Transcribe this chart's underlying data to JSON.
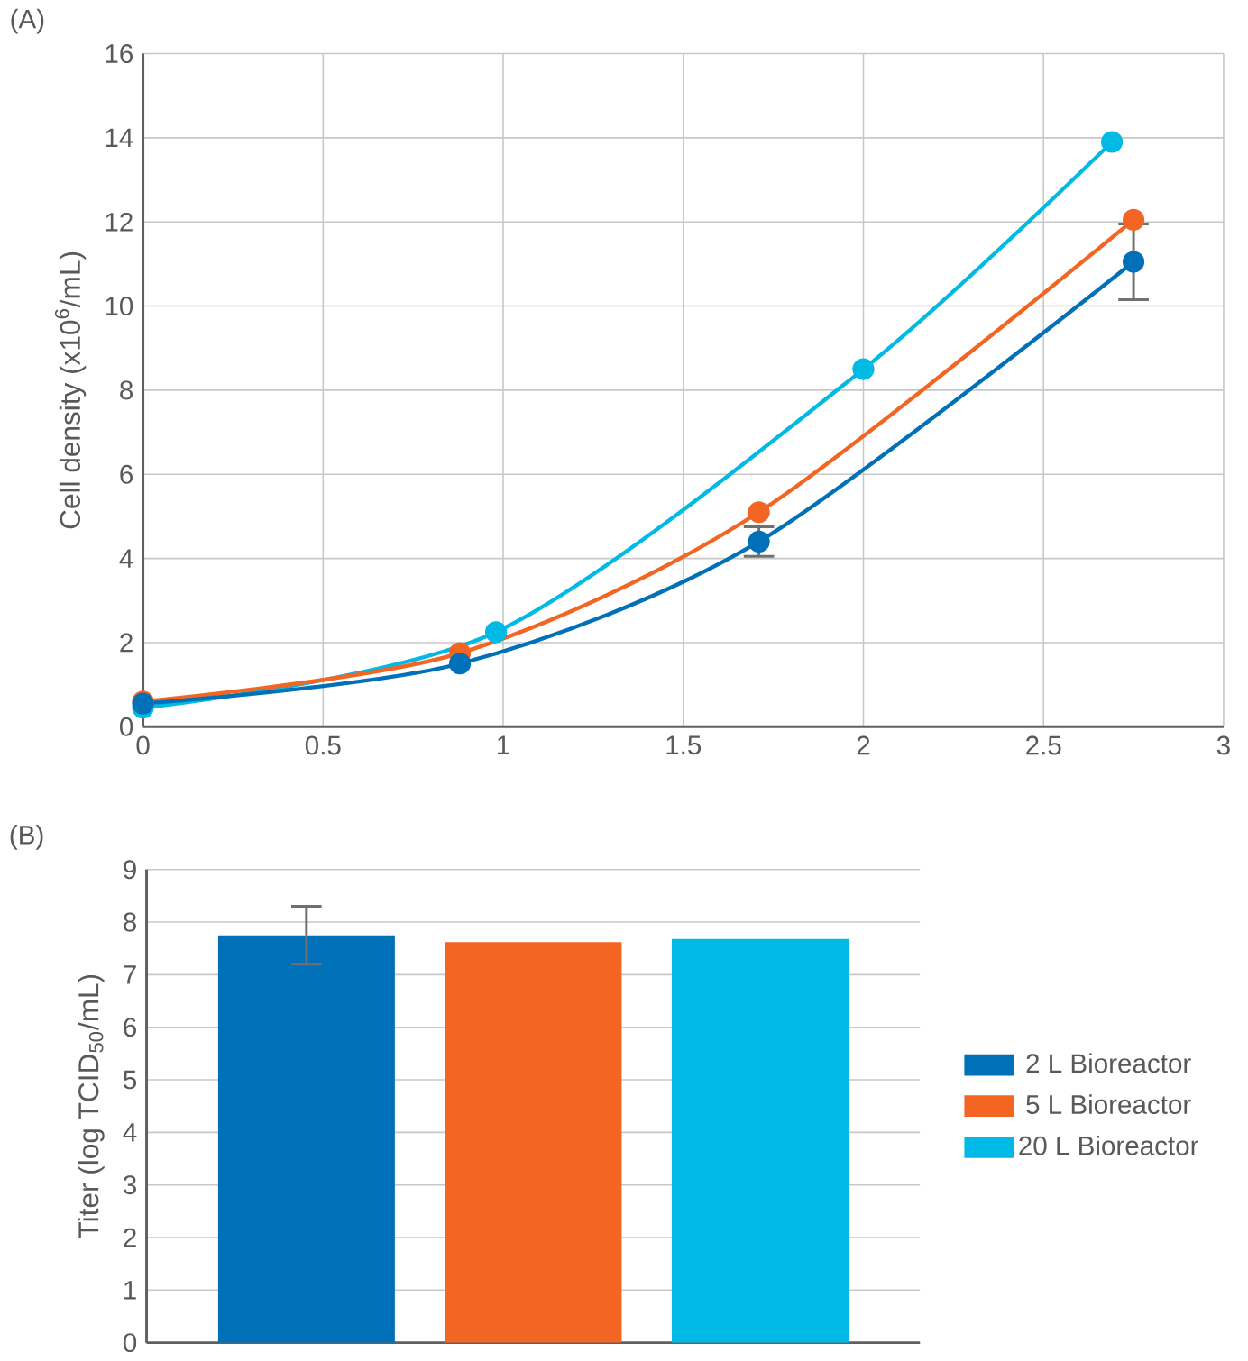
{
  "chart_data": [
    {
      "type": "line",
      "title": "(A)",
      "ylabel": "Cell density (x10$^{6}$/mL)",
      "xlim": [
        0,
        3
      ],
      "xticks": [
        0,
        0.5,
        1,
        1.5,
        2,
        2.5,
        3
      ],
      "ylim": [
        0,
        16
      ],
      "yticks": [
        0,
        2,
        4,
        6,
        8,
        10,
        12,
        14,
        16
      ],
      "grid": true,
      "marker": "circle",
      "line_style": "solid",
      "series": [
        {
          "color": "#00b9e4",
          "x": [
            0,
            0.98,
            2.0,
            2.69
          ],
          "values": [
            0.45,
            2.25,
            8.5,
            13.9
          ]
        },
        {
          "color": "#f26522",
          "x": [
            0,
            0.88,
            1.71,
            2.75
          ],
          "values": [
            0.6,
            1.75,
            5.1,
            12.05
          ]
        },
        {
          "color": "#0070b8",
          "x": [
            0,
            0.88,
            1.71,
            2.75
          ],
          "values": [
            0.55,
            1.5,
            4.4,
            11.05
          ],
          "errors": [
            null,
            null,
            0.35,
            0.9
          ]
        }
      ]
    },
    {
      "type": "bar",
      "title": "(B)",
      "ylabel": "Titer (log TCID$_{50}$/mL)",
      "categories": [
        null
      ],
      "ylim": [
        0,
        9
      ],
      "yticks": [
        0,
        1,
        2,
        3,
        4,
        5,
        6,
        7,
        8,
        9
      ],
      "grid": "y",
      "legend": "right",
      "tick_labels": "y",
      "series": [
        {
          "name": "2 L Bioreactor",
          "color": "#0070b8",
          "values": [
            7.75
          ],
          "errors": [
            0.55
          ]
        },
        {
          "name": "5 L Bioreactor",
          "color": "#f26522",
          "values": [
            7.62
          ]
        },
        {
          "name": "20 L Bioreactor",
          "color": "#00b9e4",
          "values": [
            7.68
          ]
        }
      ]
    }
  ]
}
